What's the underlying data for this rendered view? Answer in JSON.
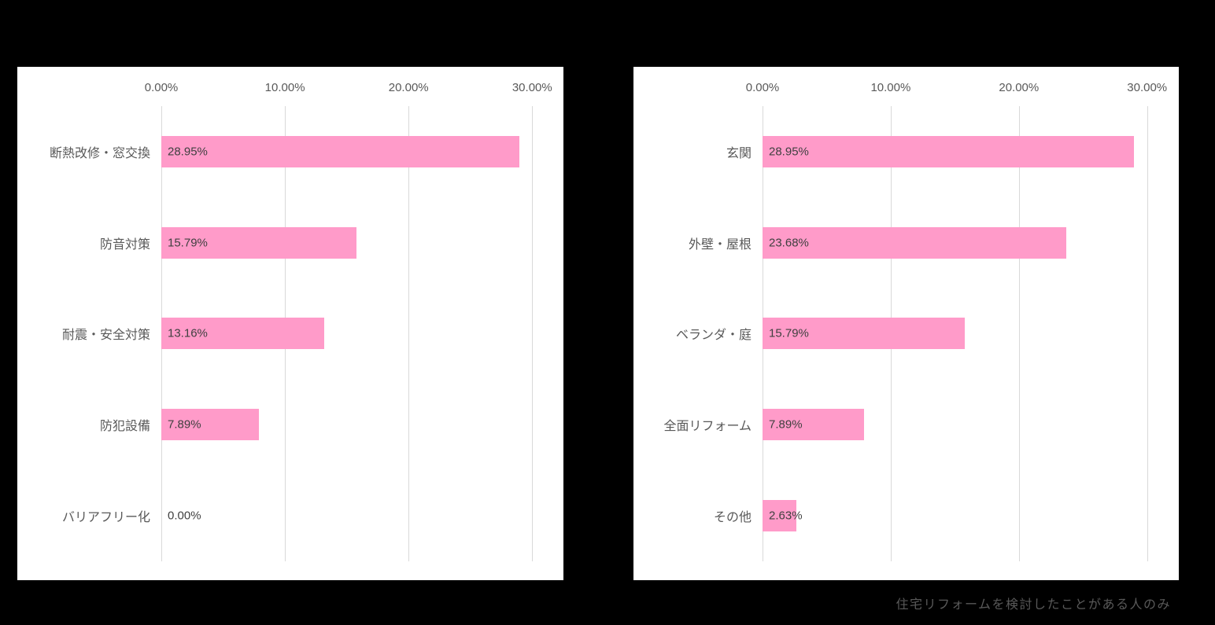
{
  "page": {
    "background_color": "#000000",
    "footer_note": "住宅リフォームを検討したことがある人のみ"
  },
  "style": {
    "panel_background": "#ffffff",
    "bar_color": "#ff9bc9",
    "gridline_color": "#d9d9d9",
    "category_label_color": "#595959",
    "axis_label_color": "#595959",
    "value_label_color": "#404040",
    "footer_color": "#595959"
  },
  "axis": {
    "ticks": [
      "0.00%",
      "10.00%",
      "20.00%",
      "30.00%"
    ],
    "tick_values": [
      0,
      10,
      20,
      30
    ],
    "display_max": 31
  },
  "chart_data": [
    {
      "type": "bar",
      "orientation": "horizontal",
      "position": "left",
      "title": "",
      "xlabel": "",
      "ylabel": "",
      "xlim": [
        0,
        31
      ],
      "x_ticks": [
        "0.00%",
        "10.00%",
        "20.00%",
        "30.00%"
      ],
      "grid": true,
      "legend": false,
      "categories": [
        "断熱改修・窓交換",
        "防音対策",
        "耐震・安全対策",
        "防犯設備",
        "バリアフリー化"
      ],
      "values": [
        28.95,
        15.79,
        13.16,
        7.89,
        0
      ],
      "value_labels": [
        "28.95%",
        "15.79%",
        "13.16%",
        "7.89%",
        "0.00%"
      ]
    },
    {
      "type": "bar",
      "orientation": "horizontal",
      "position": "right",
      "title": "",
      "xlabel": "",
      "ylabel": "",
      "xlim": [
        0,
        31
      ],
      "x_ticks": [
        "0.00%",
        "10.00%",
        "20.00%",
        "30.00%"
      ],
      "grid": true,
      "legend": false,
      "categories": [
        "玄関",
        "外壁・屋根",
        "ベランダ・庭",
        "全面リフォーム",
        "その他"
      ],
      "values": [
        28.95,
        23.68,
        15.79,
        7.89,
        2.63
      ],
      "value_labels": [
        "28.95%",
        "23.68%",
        "15.79%",
        "7.89%",
        "2.63%"
      ]
    }
  ]
}
